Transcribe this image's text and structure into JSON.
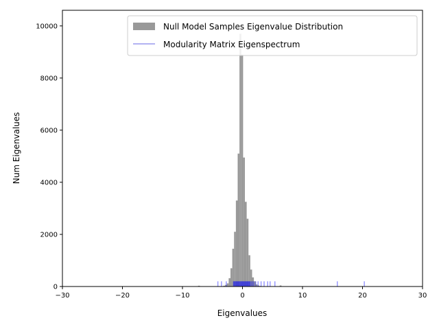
{
  "chart_data": {
    "type": "bar",
    "xlabel": "Eigenvalues",
    "ylabel": "Num Eigenvalues",
    "xlim": [
      -30,
      30
    ],
    "ylim": [
      0,
      10600
    ],
    "x_ticks": [
      -30,
      -20,
      -10,
      0,
      10,
      20,
      30
    ],
    "x_tick_labels": [
      "−30",
      "−20",
      "−10",
      "0",
      "10",
      "20",
      "30"
    ],
    "y_ticks": [
      0,
      2000,
      4000,
      6000,
      8000,
      10000
    ],
    "y_tick_labels": [
      "0",
      "2000",
      "4000",
      "6000",
      "8000",
      "10000"
    ],
    "grid": false,
    "legend_position": "top-right",
    "legend": [
      {
        "label": "Null Model Samples Eigenvalue Distribution",
        "kind": "patch",
        "color": "#999999"
      },
      {
        "label": "Modularity Matrix Eigenspectrum",
        "kind": "line",
        "color": "#9999ee"
      }
    ],
    "histogram": {
      "name": "Null Model Samples Eigenvalue Distribution",
      "color": "#999999",
      "bin_width": 0.3,
      "bin_starts": [
        -7.4,
        -3.2,
        -2.9,
        -2.6,
        -2.3,
        -2.0,
        -1.7,
        -1.4,
        -1.1,
        -0.8,
        -0.5,
        -0.2,
        0.1,
        0.4,
        0.7,
        1.0,
        1.3,
        1.6,
        1.9,
        2.2,
        2.5,
        2.8,
        6.2
      ],
      "counts": [
        30,
        30,
        60,
        120,
        320,
        700,
        1450,
        2100,
        3300,
        5100,
        9700,
        8900,
        4950,
        3250,
        2600,
        1200,
        650,
        350,
        200,
        80,
        40,
        20,
        40
      ]
    },
    "eigenspectrum": {
      "name": "Modularity Matrix Eigenspectrum",
      "color": "#0000ff",
      "alpha": 0.4,
      "tick_height": 200,
      "values": [
        -4.1,
        -3.5,
        -2.7,
        -1.5,
        -1.4,
        -1.3,
        -1.2,
        -1.1,
        -1.0,
        -0.9,
        -0.8,
        -0.7,
        -0.6,
        -0.5,
        -0.4,
        -0.3,
        -0.2,
        -0.1,
        0.0,
        0.1,
        0.2,
        0.3,
        0.4,
        0.5,
        0.6,
        0.7,
        0.8,
        0.9,
        1.0,
        1.1,
        1.2,
        1.3,
        1.5,
        1.7,
        1.9,
        2.2,
        2.6,
        3.1,
        3.6,
        4.2,
        4.6,
        5.4,
        15.8,
        20.3
      ]
    }
  }
}
